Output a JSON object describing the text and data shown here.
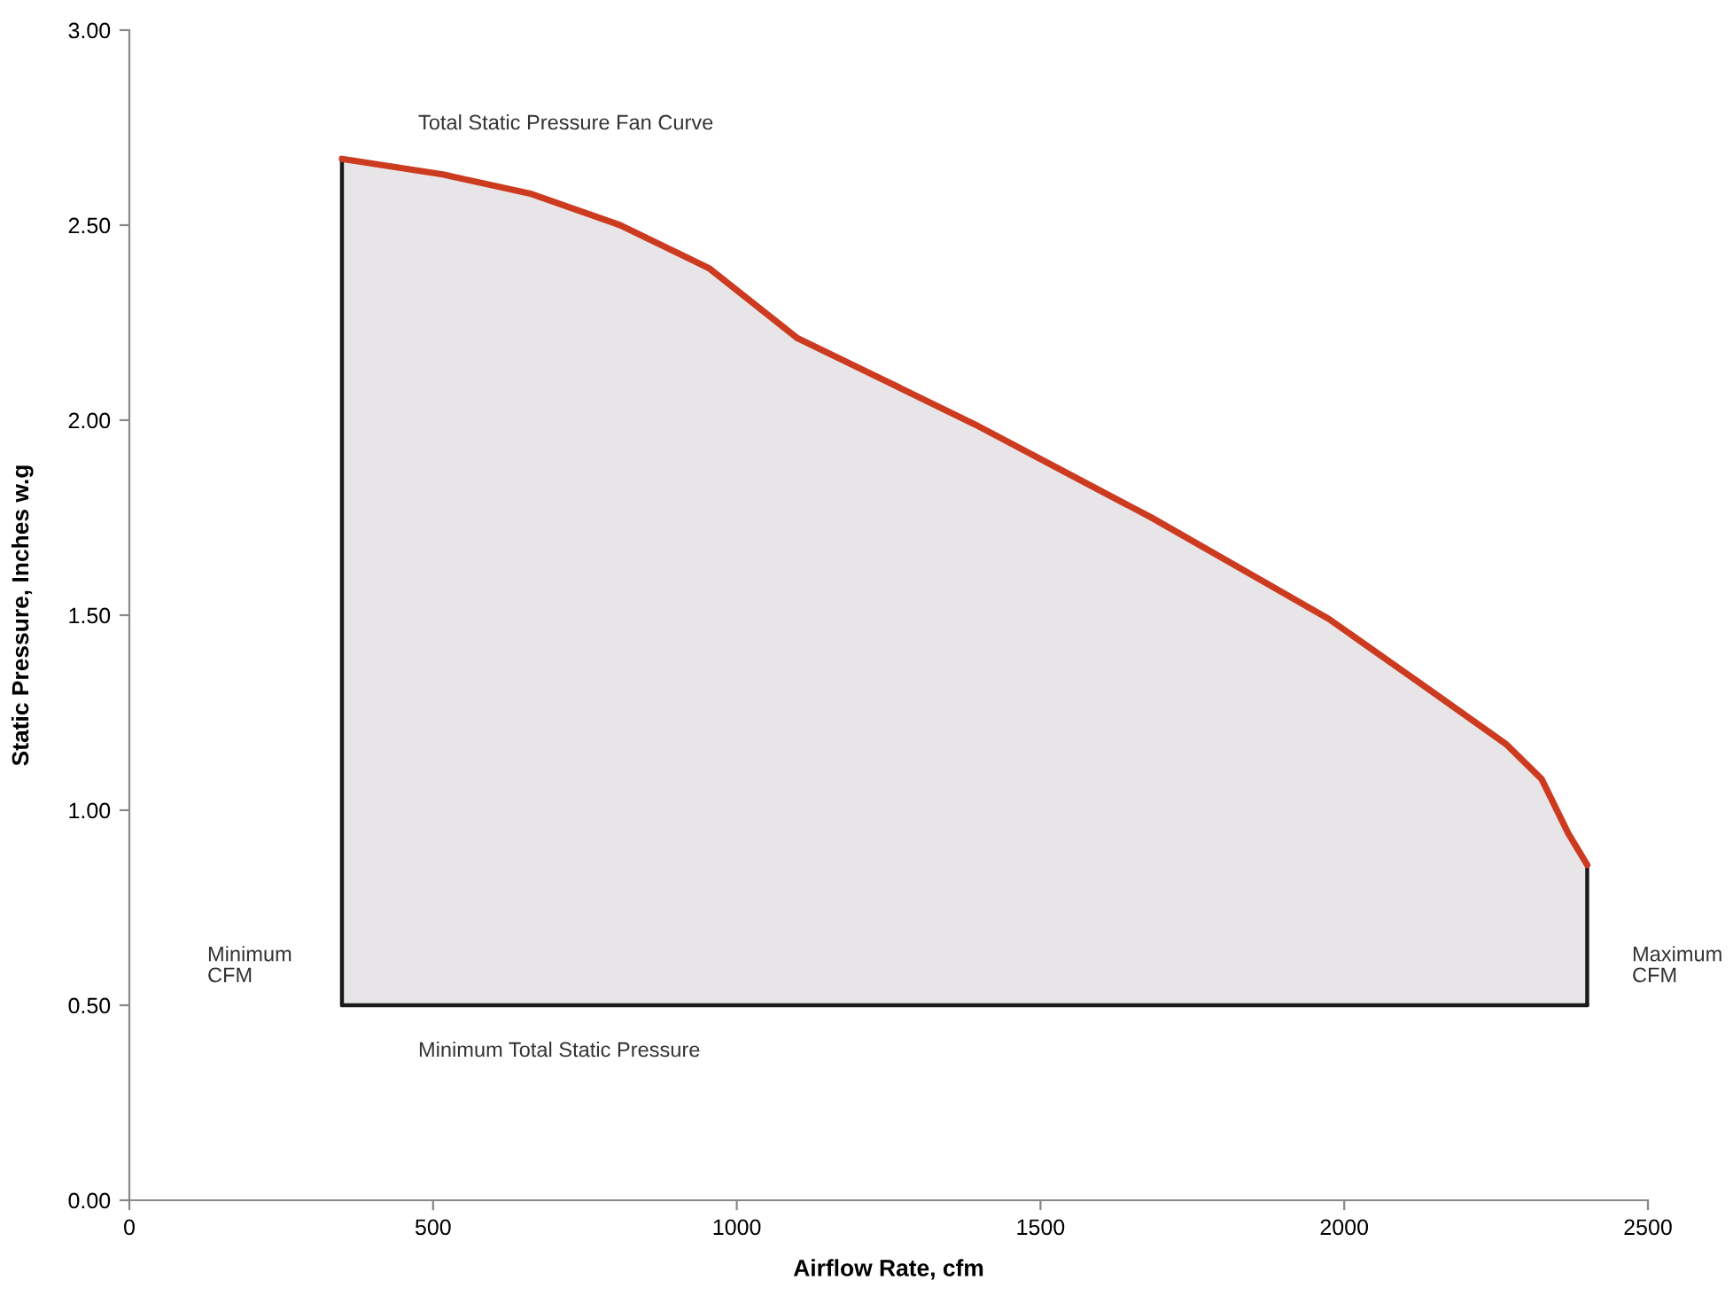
{
  "chart_data": {
    "type": "line",
    "xlabel": "Airflow Rate, cfm",
    "ylabel": "Static Pressure, Inches w.g",
    "xlim": [
      0,
      2500
    ],
    "xticks": [
      0,
      500,
      1000,
      1500,
      2000,
      2500
    ],
    "ylim": [
      0,
      3
    ],
    "yticks": [
      {
        "value": 0,
        "label": "0.00"
      },
      {
        "value": 0.5,
        "label": "0.50"
      },
      {
        "value": 1,
        "label": "1.00"
      },
      {
        "value": 1.5,
        "label": "1.50"
      },
      {
        "value": 2,
        "label": "2.00"
      },
      {
        "value": 2.5,
        "label": "2.50"
      },
      {
        "value": 3,
        "label": "3.00"
      }
    ],
    "grid": false,
    "legend": false,
    "marker": "none",
    "line_style": "solid",
    "series": [
      {
        "type": "area",
        "color": "#cc3b1f",
        "x": [
          350,
          516,
          662,
          808,
          954,
          1100,
          1246,
          1391,
          1537,
          1683,
          1829,
          1975,
          2121,
          2266,
          2325,
          2369,
          2400
        ],
        "values": [
          2.67,
          2.63,
          2.58,
          2.5,
          2.39,
          2.21,
          2.1,
          1.99,
          1.87,
          1.75,
          1.62,
          1.49,
          1.33,
          1.17,
          1.08,
          0.94,
          0.86
        ]
      },
      {
        "type": "line",
        "color": "#1a1a1a",
        "x": [
          350,
          350
        ],
        "values": [
          2.67,
          0.5
        ]
      },
      {
        "type": "line",
        "color": "#1a1a1a",
        "x": [
          350,
          2400
        ],
        "values": [
          0.5,
          0.5
        ]
      },
      {
        "type": "line",
        "color": "#1a1a1a",
        "x": [
          2400,
          2400
        ],
        "values": [
          0.5,
          0.86
        ]
      }
    ],
    "annotations": [
      "Total Static Pressure Fan Curve",
      "Minimum\nCFM",
      "Minimum Total Static Pressure",
      "Maximum\nCFM"
    ]
  }
}
